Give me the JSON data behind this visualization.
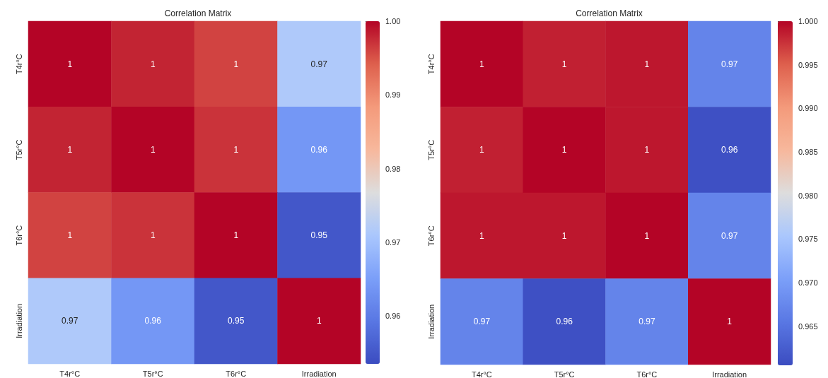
{
  "chart_data": [
    {
      "type": "heatmap",
      "title": "Correlation Matrix",
      "categories": [
        "T4r°C",
        "T5r°C",
        "T6r°C",
        "Irradiation"
      ],
      "y_categories": [
        "T4r°C",
        "T5r°C",
        "T6r°C",
        "Irradiation"
      ],
      "cells": [
        [
          1,
          0.998,
          0.996,
          0.9715
        ],
        [
          0.998,
          1,
          0.997,
          0.964
        ],
        [
          0.996,
          0.997,
          1,
          0.955
        ],
        [
          0.9715,
          0.964,
          0.955,
          1
        ]
      ],
      "cell_labels": [
        [
          "1",
          "1",
          "1",
          "0.97"
        ],
        [
          "1",
          "1",
          "1",
          "0.96"
        ],
        [
          "1",
          "1",
          "1",
          "0.95"
        ],
        [
          "0.97",
          "0.96",
          "0.95",
          "1"
        ]
      ],
      "clim": [
        0.9535,
        1
      ],
      "cticks": [
        0.96,
        0.97,
        0.98,
        0.99,
        {
          "value": 1,
          "label": "1.00"
        }
      ]
    },
    {
      "type": "heatmap",
      "title": "Correlation Matrix",
      "categories": [
        "T4r°C",
        "T5r°C",
        "T6r°C",
        "Irradiation"
      ],
      "y_categories": [
        "T4r°C",
        "T5r°C",
        "T6r°C",
        "Irradiation"
      ],
      "cells": [
        [
          1,
          0.9985,
          0.999,
          0.967
        ],
        [
          0.9985,
          1,
          0.999,
          0.961
        ],
        [
          0.999,
          0.999,
          1,
          0.967
        ],
        [
          0.967,
          0.961,
          0.967,
          1
        ]
      ],
      "cell_labels": [
        [
          "1",
          "1",
          "1",
          "0.97"
        ],
        [
          "1",
          "1",
          "1",
          "0.96"
        ],
        [
          "1",
          "1",
          "1",
          "0.97"
        ],
        [
          "0.97",
          "0.96",
          "0.97",
          "1"
        ]
      ],
      "clim": [
        0.9605,
        1
      ],
      "cticks": [
        0.965,
        {
          "value": 0.97,
          "label": "0.970"
        },
        0.975,
        {
          "value": 0.98,
          "label": "0.980"
        },
        0.985,
        {
          "value": 0.99,
          "label": "0.990"
        },
        0.995,
        {
          "value": 1,
          "label": "1.000"
        }
      ]
    }
  ]
}
